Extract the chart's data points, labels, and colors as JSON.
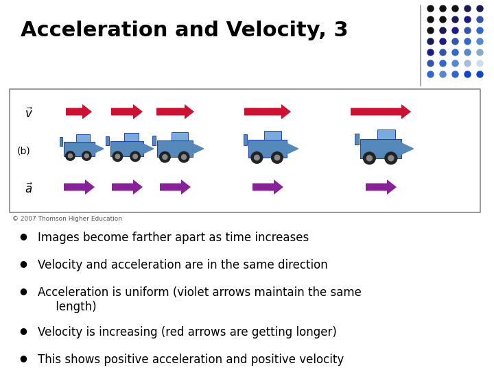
{
  "title": "Acceleration and Velocity, 3",
  "title_fontsize": 22,
  "title_fontweight": "bold",
  "title_color": "#000000",
  "bg_color": "#ffffff",
  "bullet_points": [
    "Images become farther apart as time increases",
    "Velocity and acceleration are in the same direction",
    "Acceleration is uniform (violet arrows maintain the same\n     length)",
    "Velocity is increasing (red arrows are getting longer)",
    "This shows positive acceleration and positive velocity"
  ],
  "bullet_fontsize": 12,
  "red_arrow_color": "#cc1133",
  "purple_arrow_color": "#882299",
  "car_body_color": "#5588bb",
  "car_roof_color": "#7aabdd",
  "car_edge_color": "#2244aa",
  "dot_rows": 7,
  "dot_cols": 5
}
